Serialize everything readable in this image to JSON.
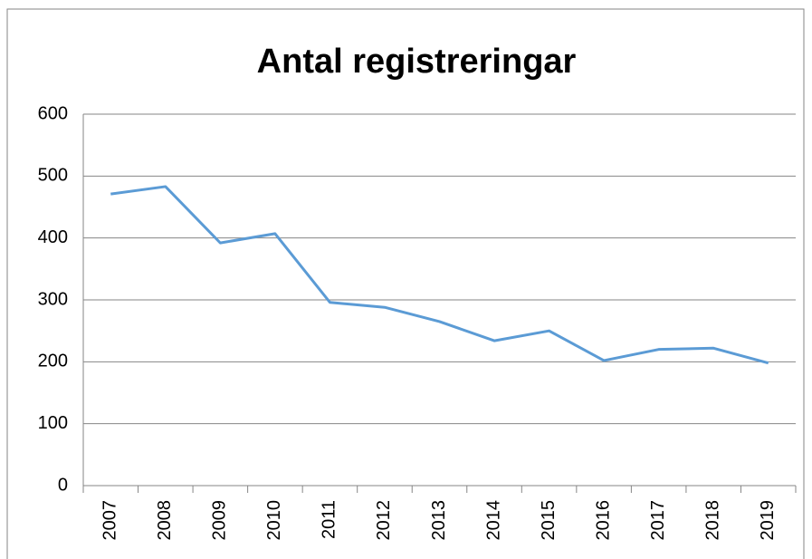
{
  "chart_data": {
    "type": "line",
    "title": "Antal registreringar",
    "categories": [
      "2007",
      "2008",
      "2009",
      "2010",
      "2011",
      "2012",
      "2013",
      "2014",
      "2015",
      "2016",
      "2017",
      "2018",
      "2019"
    ],
    "series": [
      {
        "name": "Antal registreringar",
        "color": "#5b9bd5",
        "values": [
          471,
          483,
          392,
          407,
          296,
          288,
          265,
          234,
          250,
          202,
          220,
          222,
          198
        ]
      }
    ],
    "ylim": [
      0,
      600
    ],
    "yticks": [
      0,
      100,
      200,
      300,
      400,
      500,
      600
    ],
    "grid": true
  }
}
